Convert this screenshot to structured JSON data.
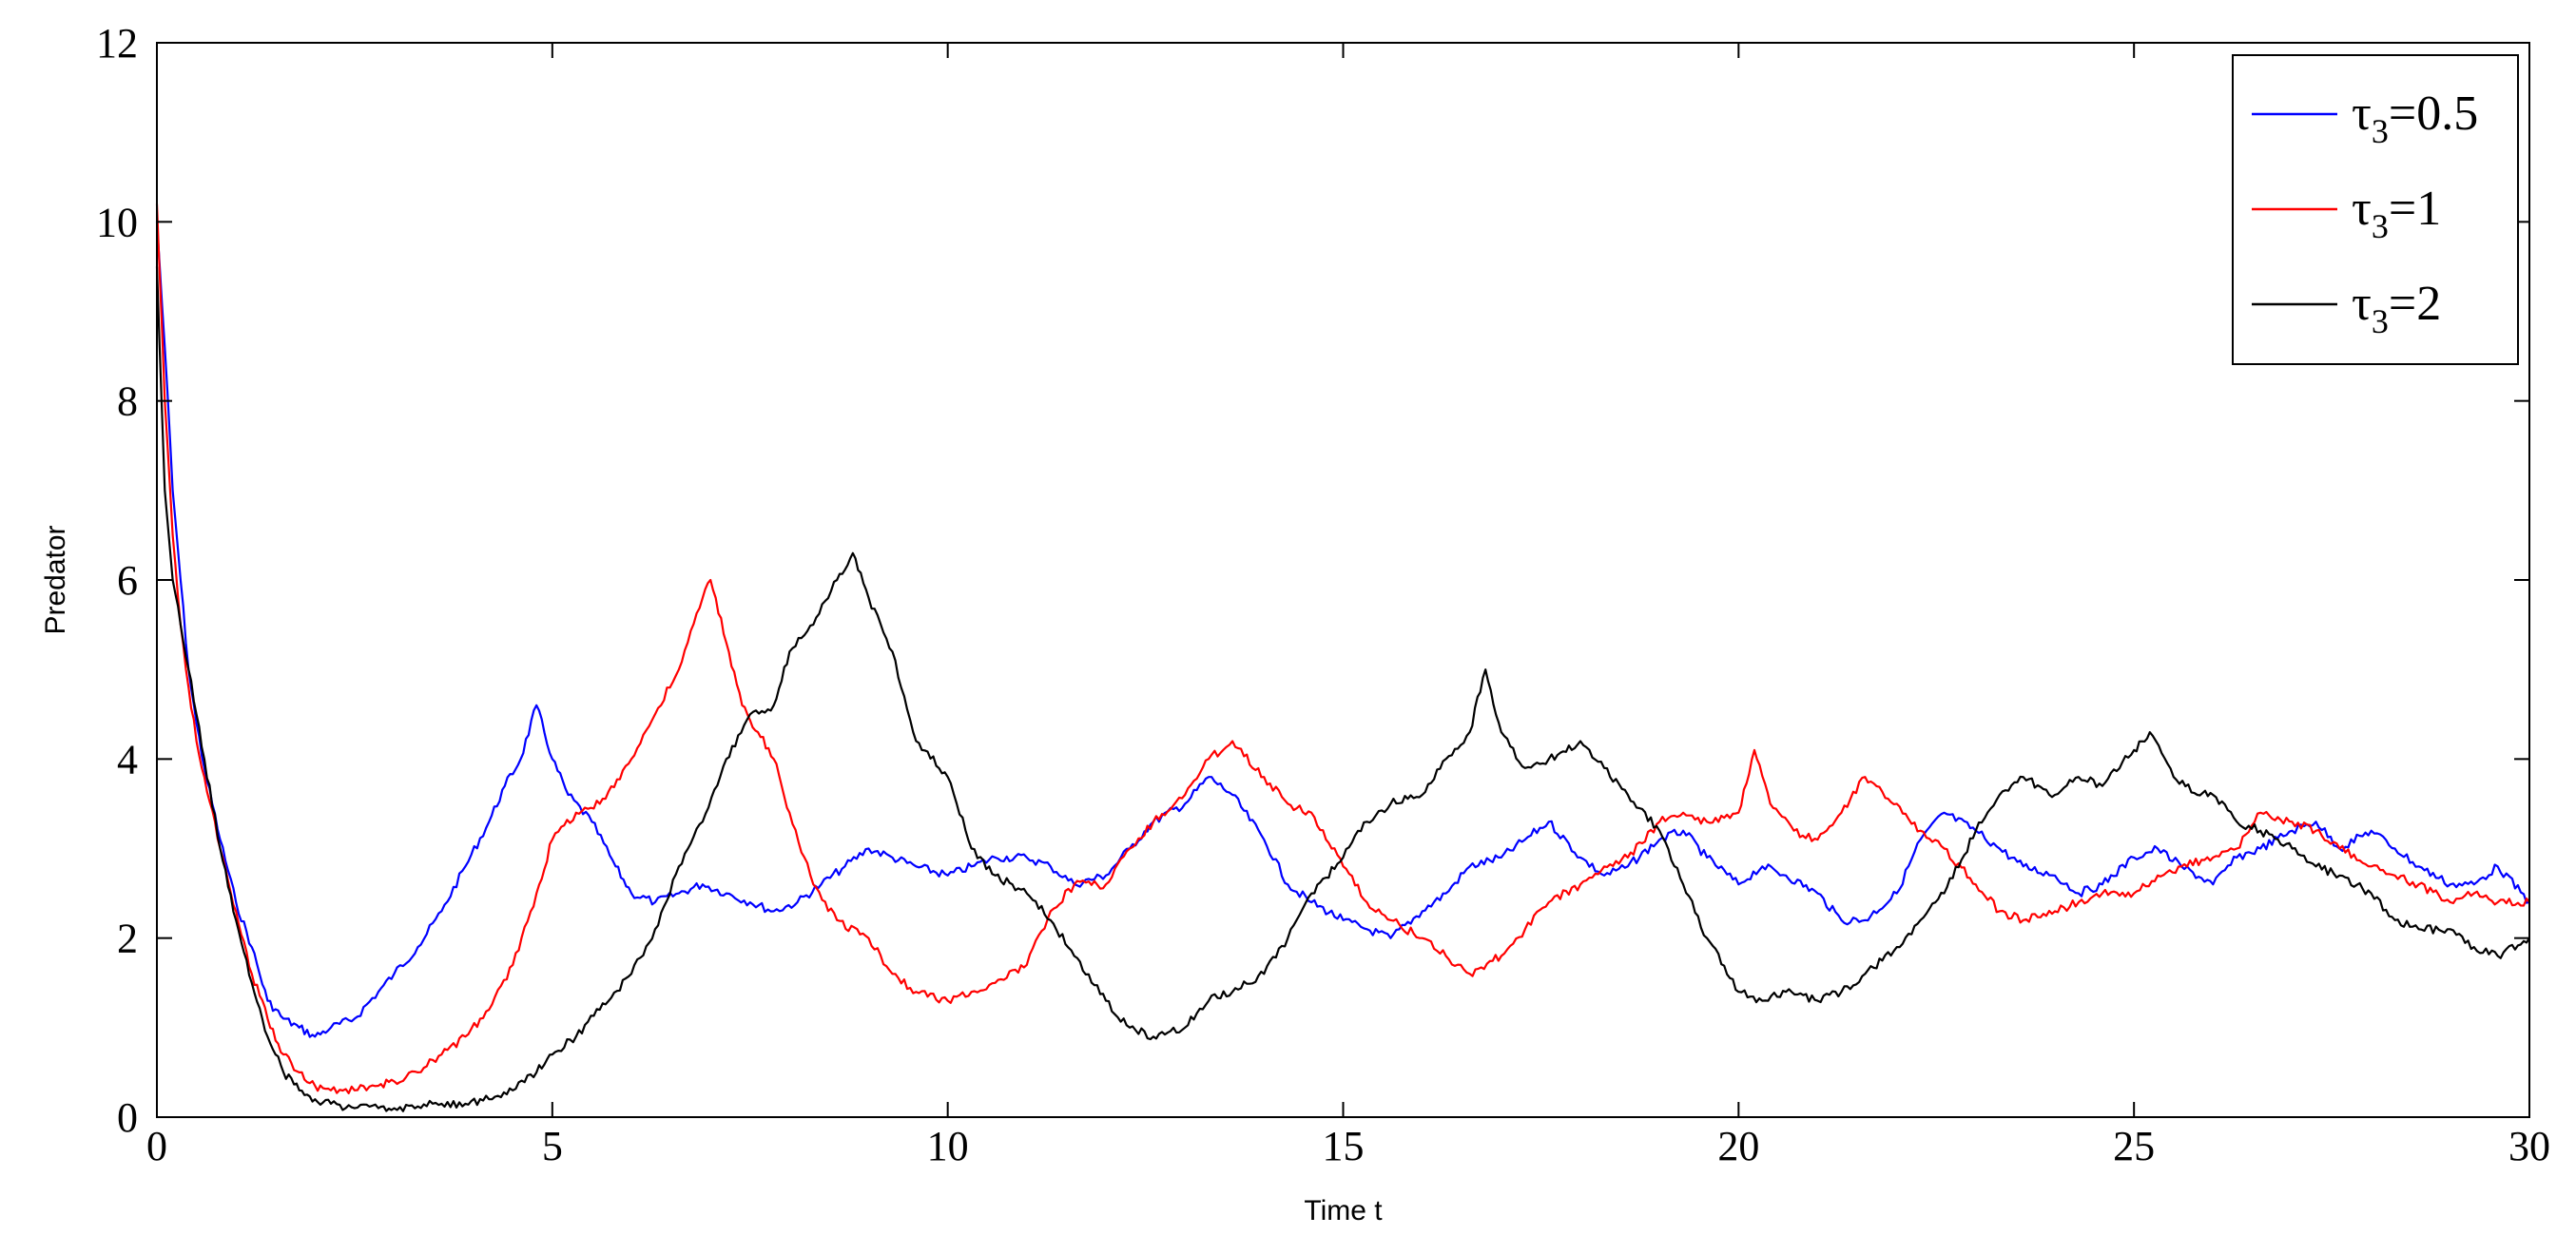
{
  "chart_data": {
    "type": "line",
    "title": "",
    "xlabel": "Time t",
    "ylabel": "Predator",
    "xlim": [
      0,
      30
    ],
    "ylim": [
      0,
      12
    ],
    "xticks": [
      0,
      5,
      10,
      15,
      20,
      25,
      30
    ],
    "yticks": [
      0,
      2,
      4,
      6,
      8,
      10,
      12
    ],
    "grid": false,
    "legend_position": "top-right",
    "series": [
      {
        "name": "τ3=0.5",
        "legend_symbol": "τ",
        "legend_subscript": "3",
        "legend_value": "=0.5",
        "color": "#0000ff",
        "x": [
          0,
          0.1,
          0.2,
          0.3,
          0.4,
          0.5,
          0.6,
          0.8,
          1.0,
          1.2,
          1.4,
          1.6,
          1.8,
          2.0,
          2.2,
          2.5,
          2.8,
          3.0,
          3.3,
          3.6,
          3.9,
          4.2,
          4.4,
          4.6,
          4.8,
          5.0,
          5.2,
          5.5,
          5.8,
          6.0,
          6.3,
          6.6,
          6.9,
          7.2,
          7.5,
          7.8,
          8.1,
          8.4,
          8.7,
          9.0,
          9.3,
          9.6,
          10.0,
          10.3,
          10.6,
          11.0,
          11.3,
          11.6,
          12.0,
          12.3,
          12.6,
          13.0,
          13.3,
          13.6,
          14.0,
          14.3,
          14.6,
          15.0,
          15.3,
          15.6,
          16.0,
          16.3,
          16.6,
          17.0,
          17.3,
          17.6,
          18.0,
          18.3,
          18.6,
          19.0,
          19.3,
          19.6,
          20.0,
          20.3,
          20.6,
          21.0,
          21.3,
          21.6,
          22.0,
          22.3,
          22.6,
          23.0,
          23.3,
          23.6,
          24.0,
          24.3,
          24.6,
          25.0,
          25.3,
          25.6,
          26.0,
          26.3,
          26.6,
          27.0,
          27.3,
          27.6,
          28.0,
          28.3,
          28.6,
          29.0,
          29.3,
          29.6,
          30.0
        ],
        "values": [
          10.0,
          8.6,
          7.0,
          6.0,
          5.0,
          4.4,
          3.9,
          3.1,
          2.4,
          1.9,
          1.3,
          1.1,
          1.0,
          0.9,
          1.0,
          1.1,
          1.4,
          1.6,
          1.9,
          2.3,
          2.8,
          3.3,
          3.7,
          4.0,
          4.6,
          4.0,
          3.6,
          3.3,
          2.8,
          2.5,
          2.4,
          2.5,
          2.6,
          2.5,
          2.4,
          2.3,
          2.4,
          2.6,
          2.8,
          3.0,
          2.9,
          2.8,
          2.7,
          2.8,
          2.9,
          2.9,
          2.8,
          2.6,
          2.7,
          3.0,
          3.3,
          3.5,
          3.8,
          3.6,
          3.1,
          2.6,
          2.4,
          2.2,
          2.1,
          2.0,
          2.3,
          2.5,
          2.8,
          2.9,
          3.1,
          3.3,
          2.9,
          2.7,
          2.8,
          3.1,
          3.2,
          2.9,
          2.6,
          2.8,
          2.7,
          2.5,
          2.2,
          2.2,
          2.5,
          3.1,
          3.4,
          3.2,
          3.0,
          2.8,
          2.7,
          2.5,
          2.6,
          2.9,
          3.0,
          2.8,
          2.6,
          2.9,
          3.0,
          3.2,
          3.3,
          3.0,
          3.2,
          3.0,
          2.8,
          2.6,
          2.6,
          2.8,
          2.4
        ]
      },
      {
        "name": "τ3=1",
        "legend_symbol": "τ",
        "legend_subscript": "3",
        "legend_value": "=1",
        "color": "#ff0000",
        "x": [
          0,
          0.1,
          0.2,
          0.3,
          0.4,
          0.5,
          0.6,
          0.8,
          1.0,
          1.2,
          1.4,
          1.6,
          1.8,
          2.0,
          2.2,
          2.5,
          2.8,
          3.0,
          3.3,
          3.6,
          3.9,
          4.2,
          4.5,
          4.8,
          5.0,
          5.3,
          5.6,
          6.0,
          6.3,
          6.6,
          6.9,
          7.0,
          7.2,
          7.4,
          7.6,
          7.8,
          8.0,
          8.3,
          8.6,
          9.0,
          9.3,
          9.6,
          10.0,
          10.3,
          10.6,
          11.0,
          11.3,
          11.6,
          12.0,
          12.3,
          12.6,
          13.0,
          13.3,
          13.6,
          14.0,
          14.3,
          14.6,
          15.0,
          15.3,
          15.6,
          16.0,
          16.3,
          16.6,
          17.0,
          17.3,
          17.6,
          18.0,
          18.3,
          18.6,
          19.0,
          19.3,
          19.6,
          20.0,
          20.2,
          20.4,
          20.7,
          21.0,
          21.3,
          21.6,
          22.0,
          22.3,
          22.6,
          23.0,
          23.3,
          23.6,
          24.0,
          24.3,
          24.6,
          25.0,
          25.3,
          25.6,
          26.0,
          26.3,
          26.6,
          27.0,
          27.3,
          27.6,
          28.0,
          28.3,
          28.6,
          29.0,
          29.3,
          29.6,
          30.0
        ],
        "values": [
          10.2,
          8.0,
          6.5,
          5.5,
          4.8,
          4.2,
          3.8,
          3.0,
          2.3,
          1.6,
          1.1,
          0.7,
          0.5,
          0.35,
          0.3,
          0.3,
          0.35,
          0.4,
          0.5,
          0.7,
          0.9,
          1.2,
          1.7,
          2.5,
          3.1,
          3.4,
          3.5,
          4.0,
          4.5,
          5.0,
          5.8,
          6.0,
          5.3,
          4.6,
          4.3,
          4.0,
          3.4,
          2.6,
          2.2,
          2.0,
          1.6,
          1.4,
          1.3,
          1.4,
          1.5,
          1.7,
          2.3,
          2.6,
          2.6,
          3.0,
          3.3,
          3.6,
          4.0,
          4.2,
          3.8,
          3.5,
          3.4,
          2.8,
          2.4,
          2.2,
          2.0,
          1.8,
          1.6,
          1.8,
          2.1,
          2.4,
          2.6,
          2.8,
          2.9,
          3.3,
          3.4,
          3.3,
          3.4,
          4.1,
          3.5,
          3.2,
          3.1,
          3.4,
          3.8,
          3.5,
          3.2,
          3.0,
          2.6,
          2.3,
          2.2,
          2.3,
          2.4,
          2.5,
          2.5,
          2.7,
          2.8,
          2.9,
          3.0,
          3.4,
          3.3,
          3.2,
          3.0,
          2.8,
          2.7,
          2.6,
          2.4,
          2.5,
          2.4,
          2.4
        ]
      },
      {
        "name": "τ3=2",
        "legend_symbol": "τ",
        "legend_subscript": "3",
        "legend_value": "=2",
        "color": "#000000",
        "x": [
          0,
          0.1,
          0.2,
          0.3,
          0.4,
          0.5,
          0.6,
          0.8,
          1.0,
          1.2,
          1.4,
          1.6,
          1.8,
          2.0,
          2.2,
          2.5,
          2.8,
          3.0,
          3.3,
          3.6,
          3.9,
          4.2,
          4.5,
          4.8,
          5.0,
          5.3,
          5.6,
          6.0,
          6.3,
          6.6,
          6.9,
          7.2,
          7.5,
          7.8,
          8.0,
          8.3,
          8.6,
          8.8,
          9.0,
          9.3,
          9.6,
          10.0,
          10.3,
          10.6,
          11.0,
          11.3,
          11.6,
          12.0,
          12.3,
          12.6,
          13.0,
          13.3,
          13.6,
          14.0,
          14.3,
          14.6,
          15.0,
          15.3,
          15.6,
          16.0,
          16.3,
          16.6,
          16.8,
          17.0,
          17.3,
          17.6,
          18.0,
          18.3,
          18.6,
          19.0,
          19.3,
          19.6,
          20.0,
          20.3,
          20.6,
          21.0,
          21.3,
          21.6,
          22.0,
          22.3,
          22.6,
          23.0,
          23.3,
          23.6,
          24.0,
          24.3,
          24.6,
          25.0,
          25.2,
          25.5,
          25.8,
          26.0,
          26.3,
          26.6,
          27.0,
          27.3,
          27.6,
          28.0,
          28.3,
          28.6,
          29.0,
          29.3,
          29.6,
          30.0
        ],
        "values": [
          9.5,
          7.0,
          6.0,
          5.5,
          5.0,
          4.5,
          4.0,
          3.0,
          2.2,
          1.5,
          0.9,
          0.5,
          0.3,
          0.2,
          0.15,
          0.1,
          0.1,
          0.1,
          0.12,
          0.15,
          0.15,
          0.2,
          0.3,
          0.5,
          0.7,
          0.9,
          1.2,
          1.6,
          2.1,
          2.8,
          3.3,
          4.0,
          4.5,
          4.6,
          5.2,
          5.5,
          6.0,
          6.3,
          5.8,
          5.2,
          4.2,
          3.8,
          3.0,
          2.7,
          2.5,
          2.2,
          1.8,
          1.3,
          1.0,
          0.9,
          1.0,
          1.3,
          1.4,
          1.6,
          2.0,
          2.5,
          2.9,
          3.3,
          3.5,
          3.6,
          4.0,
          4.3,
          5.0,
          4.3,
          3.9,
          4.0,
          4.2,
          3.9,
          3.6,
          3.2,
          2.6,
          2.0,
          1.4,
          1.3,
          1.4,
          1.3,
          1.4,
          1.6,
          1.9,
          2.2,
          2.5,
          3.2,
          3.6,
          3.8,
          3.6,
          3.8,
          3.7,
          4.1,
          4.3,
          3.8,
          3.6,
          3.6,
          3.3,
          3.2,
          3.0,
          2.8,
          2.7,
          2.5,
          2.2,
          2.1,
          2.1,
          1.9,
          1.8,
          2.0
        ]
      }
    ]
  }
}
